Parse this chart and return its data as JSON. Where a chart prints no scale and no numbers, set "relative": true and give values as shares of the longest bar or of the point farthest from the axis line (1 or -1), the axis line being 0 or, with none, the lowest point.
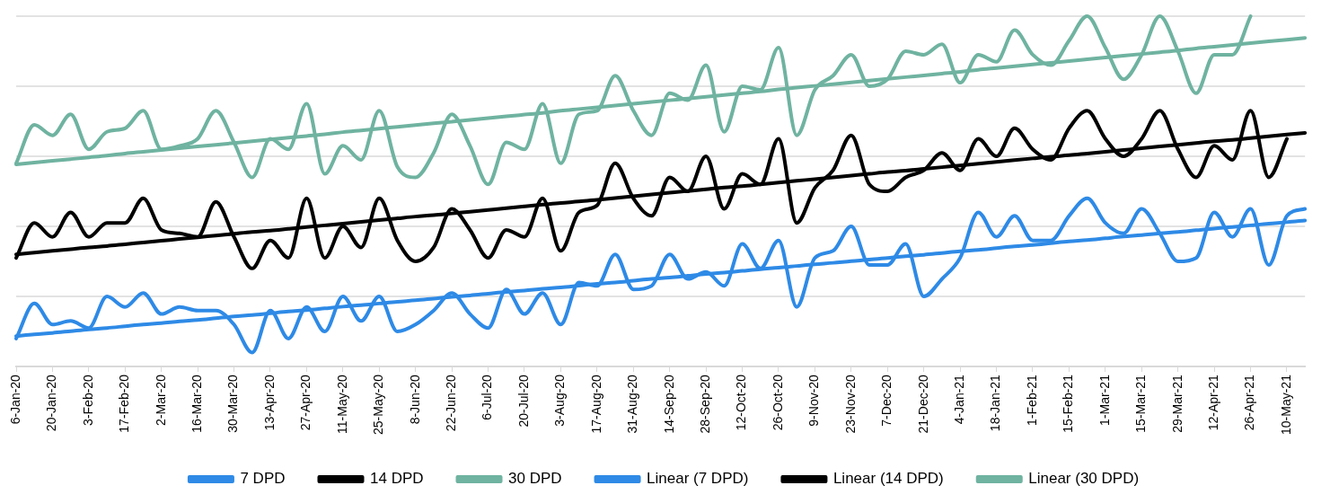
{
  "chart_data": {
    "type": "line",
    "relative": true,
    "grid": "y",
    "legend": "bottom",
    "categories": [
      "6-Jan-20",
      null,
      "20-Jan-20",
      null,
      "3-Feb-20",
      null,
      "17-Feb-20",
      null,
      "2-Mar-20",
      null,
      "16-Mar-20",
      null,
      "30-Mar-20",
      null,
      "13-Apr-20",
      null,
      "27-Apr-20",
      null,
      "11-May-20",
      null,
      "25-May-20",
      null,
      "8-Jun-20",
      null,
      "22-Jun-20",
      null,
      "6-Jul-20",
      null,
      "20-Jul-20",
      null,
      "3-Aug-20",
      null,
      "17-Aug-20",
      null,
      "31-Aug-20",
      null,
      "14-Sep-20",
      null,
      "28-Sep-20",
      null,
      "12-Oct-20",
      null,
      "26-Oct-20",
      null,
      "9-Nov-20",
      null,
      "23-Nov-20",
      null,
      "7-Dec-20",
      null,
      "21-Dec-20",
      null,
      "4-Jan-21",
      null,
      "18-Jan-21",
      null,
      "1-Feb-21",
      null,
      "15-Feb-21",
      null,
      "1-Mar-21",
      null,
      "15-Mar-21",
      null,
      "29-Mar-21",
      null,
      "12-Apr-21",
      null,
      "26-Apr-21",
      null,
      "10-May-21",
      null
    ],
    "series": [
      {
        "name": "7 DPD",
        "color": "#2e8ae6",
        "values": [
          0.08,
          0.18,
          0.12,
          0.13,
          0.11,
          0.2,
          0.17,
          0.21,
          0.15,
          0.17,
          0.16,
          0.16,
          0.12,
          0.04,
          0.16,
          0.08,
          0.17,
          0.1,
          0.2,
          0.13,
          0.2,
          0.1,
          0.12,
          0.16,
          0.21,
          0.15,
          0.11,
          0.22,
          0.15,
          0.21,
          0.12,
          0.24,
          0.23,
          0.32,
          0.22,
          0.23,
          0.32,
          0.25,
          0.27,
          0.23,
          0.35,
          0.28,
          0.36,
          0.17,
          0.31,
          0.33,
          0.4,
          0.29,
          0.29,
          0.35,
          0.2,
          0.25,
          0.31,
          0.44,
          0.37,
          0.43,
          0.36,
          0.36,
          0.43,
          0.48,
          0.41,
          0.38,
          0.45,
          0.38,
          0.3,
          0.31,
          0.44,
          0.37,
          0.45,
          0.29,
          0.43,
          0.45
        ]
      },
      {
        "name": "14 DPD",
        "color": "#000000",
        "values": [
          0.31,
          0.41,
          0.37,
          0.44,
          0.37,
          0.41,
          0.41,
          0.48,
          0.39,
          0.38,
          0.37,
          0.47,
          0.37,
          0.28,
          0.36,
          0.31,
          0.48,
          0.31,
          0.4,
          0.34,
          0.48,
          0.36,
          0.3,
          0.34,
          0.45,
          0.39,
          0.31,
          0.39,
          0.37,
          0.48,
          0.33,
          0.44,
          0.46,
          0.58,
          0.48,
          0.43,
          0.54,
          0.5,
          0.6,
          0.45,
          0.55,
          0.52,
          0.65,
          0.41,
          0.51,
          0.56,
          0.66,
          0.52,
          0.5,
          0.54,
          0.56,
          0.61,
          0.56,
          0.65,
          0.6,
          0.68,
          0.62,
          0.59,
          0.68,
          0.73,
          0.65,
          0.6,
          0.65,
          0.73,
          0.62,
          0.54,
          0.63,
          0.59,
          0.73,
          0.54,
          0.65,
          null
        ]
      },
      {
        "name": "30 DPD",
        "color": "#6fb3a0",
        "values": [
          0.58,
          0.69,
          0.66,
          0.72,
          0.62,
          0.67,
          0.68,
          0.73,
          0.62,
          0.63,
          0.65,
          0.73,
          0.64,
          0.54,
          0.65,
          0.62,
          0.75,
          0.55,
          0.63,
          0.59,
          0.73,
          0.57,
          0.54,
          0.61,
          0.72,
          0.63,
          0.52,
          0.64,
          0.62,
          0.75,
          0.58,
          0.72,
          0.73,
          0.83,
          0.73,
          0.66,
          0.78,
          0.76,
          0.86,
          0.67,
          0.8,
          0.79,
          0.91,
          0.66,
          0.79,
          0.83,
          0.89,
          0.8,
          0.82,
          0.9,
          0.89,
          0.92,
          0.81,
          0.89,
          0.87,
          0.96,
          0.89,
          0.86,
          0.93,
          1,
          0.91,
          0.82,
          0.89,
          1,
          0.9,
          0.78,
          0.89,
          0.89,
          1,
          null,
          null,
          null
        ]
      },
      {
        "name": "Linear (7 DPD)",
        "color": "#2e8ae6",
        "values": [
          0.087,
          0.092,
          0.096,
          0.101,
          0.106,
          0.11,
          0.115,
          0.12,
          0.124,
          0.129,
          0.133,
          0.138,
          0.143,
          0.147,
          0.152,
          0.157,
          0.161,
          0.166,
          0.171,
          0.175,
          0.18,
          0.185,
          0.189,
          0.194,
          0.199,
          0.203,
          0.208,
          0.213,
          0.217,
          0.222,
          0.226,
          0.231,
          0.236,
          0.24,
          0.245,
          0.25,
          0.254,
          0.259,
          0.264,
          0.268,
          0.273,
          0.278,
          0.282,
          0.287,
          0.292,
          0.296,
          0.301,
          0.305,
          0.31,
          0.315,
          0.319,
          0.324,
          0.329,
          0.333,
          0.338,
          0.343,
          0.347,
          0.352,
          0.357,
          0.361,
          0.366,
          0.371,
          0.375,
          0.38,
          0.384,
          0.389,
          0.394,
          0.398,
          0.403,
          0.408,
          0.412,
          0.417
        ]
      },
      {
        "name": "Linear (14 DPD)",
        "color": "#000000",
        "values": [
          0.32,
          0.325,
          0.33,
          0.335,
          0.34,
          0.344,
          0.349,
          0.354,
          0.359,
          0.364,
          0.369,
          0.374,
          0.379,
          0.384,
          0.388,
          0.393,
          0.398,
          0.403,
          0.408,
          0.413,
          0.418,
          0.423,
          0.428,
          0.432,
          0.437,
          0.442,
          0.447,
          0.452,
          0.457,
          0.462,
          0.467,
          0.471,
          0.476,
          0.481,
          0.486,
          0.491,
          0.496,
          0.501,
          0.506,
          0.511,
          0.515,
          0.52,
          0.525,
          0.53,
          0.535,
          0.54,
          0.545,
          0.55,
          0.555,
          0.559,
          0.564,
          0.569,
          0.574,
          0.579,
          0.584,
          0.589,
          0.594,
          0.599,
          0.603,
          0.608,
          0.613,
          0.618,
          0.623,
          0.628,
          0.633,
          0.638,
          0.643,
          0.647,
          0.652,
          0.657,
          0.662,
          0.667
        ]
      },
      {
        "name": "Linear (30 DPD)",
        "color": "#6fb3a0",
        "values": [
          0.577,
          0.582,
          0.587,
          0.592,
          0.597,
          0.602,
          0.608,
          0.613,
          0.618,
          0.623,
          0.628,
          0.633,
          0.638,
          0.643,
          0.648,
          0.653,
          0.658,
          0.663,
          0.669,
          0.674,
          0.679,
          0.684,
          0.689,
          0.694,
          0.699,
          0.704,
          0.709,
          0.714,
          0.719,
          0.724,
          0.73,
          0.735,
          0.74,
          0.745,
          0.75,
          0.755,
          0.76,
          0.765,
          0.77,
          0.775,
          0.78,
          0.785,
          0.791,
          0.796,
          0.801,
          0.806,
          0.811,
          0.816,
          0.821,
          0.826,
          0.831,
          0.836,
          0.841,
          0.847,
          0.852,
          0.857,
          0.862,
          0.867,
          0.872,
          0.877,
          0.882,
          0.887,
          0.892,
          0.897,
          0.902,
          0.908,
          0.913,
          0.918,
          0.923,
          0.928,
          0.933,
          0.938
        ]
      }
    ]
  }
}
